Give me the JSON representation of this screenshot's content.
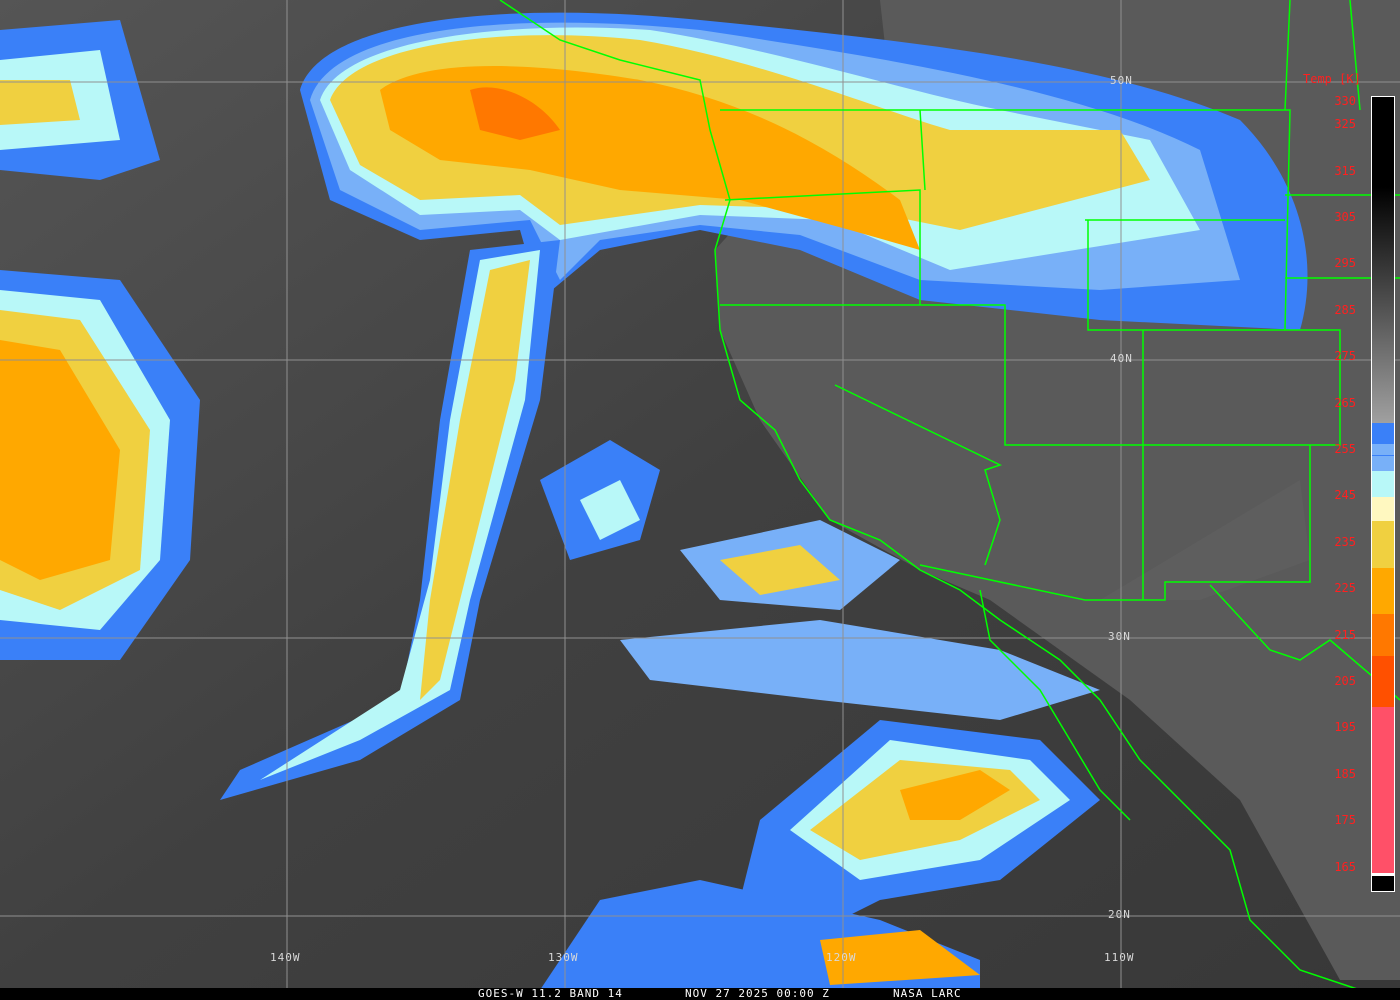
{
  "image": {
    "satellite": "GOES-W",
    "footer": {
      "product": "GOES-W 11.2 BAND 14",
      "datetime": "NOV 27 2025 00:00 Z",
      "source": "NASA LARC"
    },
    "longitude_labels": [
      "140W",
      "130W",
      "120W",
      "110W"
    ],
    "latitude_labels": [
      "50N",
      "40N",
      "30N",
      "20N"
    ],
    "colorbar": {
      "title": "Temp [K]",
      "ticks": [
        "330",
        "325",
        "315",
        "305",
        "295",
        "285",
        "275",
        "265",
        "255",
        "245",
        "235",
        "225",
        "215",
        "205",
        "195",
        "185",
        "175",
        "165"
      ],
      "colors": {
        "warm_top": "#000000",
        "warm_bottom": "#a0a0a0",
        "blue": "#3a80f8",
        "light_blue": "#78b0f8",
        "cyan": "#b8f8f8",
        "cream": "#fff8c0",
        "yellow": "#f0d040",
        "orange": "#ffa800",
        "dark_orange": "#ff7800",
        "red_orange": "#ff5000",
        "pink": "#ff5068"
      }
    },
    "border_color": "#00ff00",
    "grid_color": "#909090"
  }
}
